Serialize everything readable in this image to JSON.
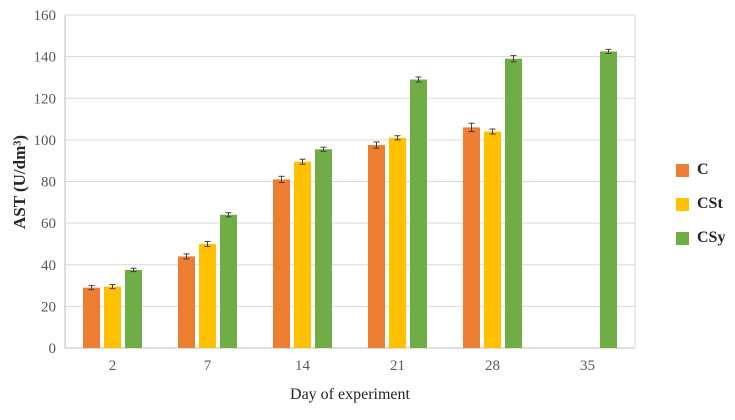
{
  "chart_data": {
    "type": "bar",
    "title": "",
    "xlabel": "Day of experiment",
    "ylabel": "AST (U/dm³)",
    "ylim": [
      0,
      160
    ],
    "ytick_step": 20,
    "grid": true,
    "legend_position": "right",
    "categories": [
      "2",
      "7",
      "14",
      "21",
      "28",
      "35"
    ],
    "series": [
      {
        "name": "C",
        "color": "#ED7D31",
        "values": [
          29,
          44,
          81,
          97.5,
          106,
          null
        ],
        "errors": [
          1,
          1.2,
          1.5,
          1.5,
          2,
          null
        ]
      },
      {
        "name": "CSt",
        "color": "#FFC000",
        "values": [
          29.5,
          50,
          89.5,
          101,
          104,
          null
        ],
        "errors": [
          1,
          1.2,
          1.2,
          1,
          1.2,
          null
        ]
      },
      {
        "name": "CSy",
        "color": "#70AD47",
        "values": [
          37.5,
          64,
          95.5,
          129,
          139,
          142.5
        ],
        "errors": [
          0.8,
          1,
          1,
          1.2,
          1.5,
          1
        ]
      }
    ],
    "colors": {
      "gridline": "#d9d9d9",
      "axis_line": "#bfbfbf",
      "tick_label": "#595959",
      "error_bar": "#404040"
    }
  }
}
